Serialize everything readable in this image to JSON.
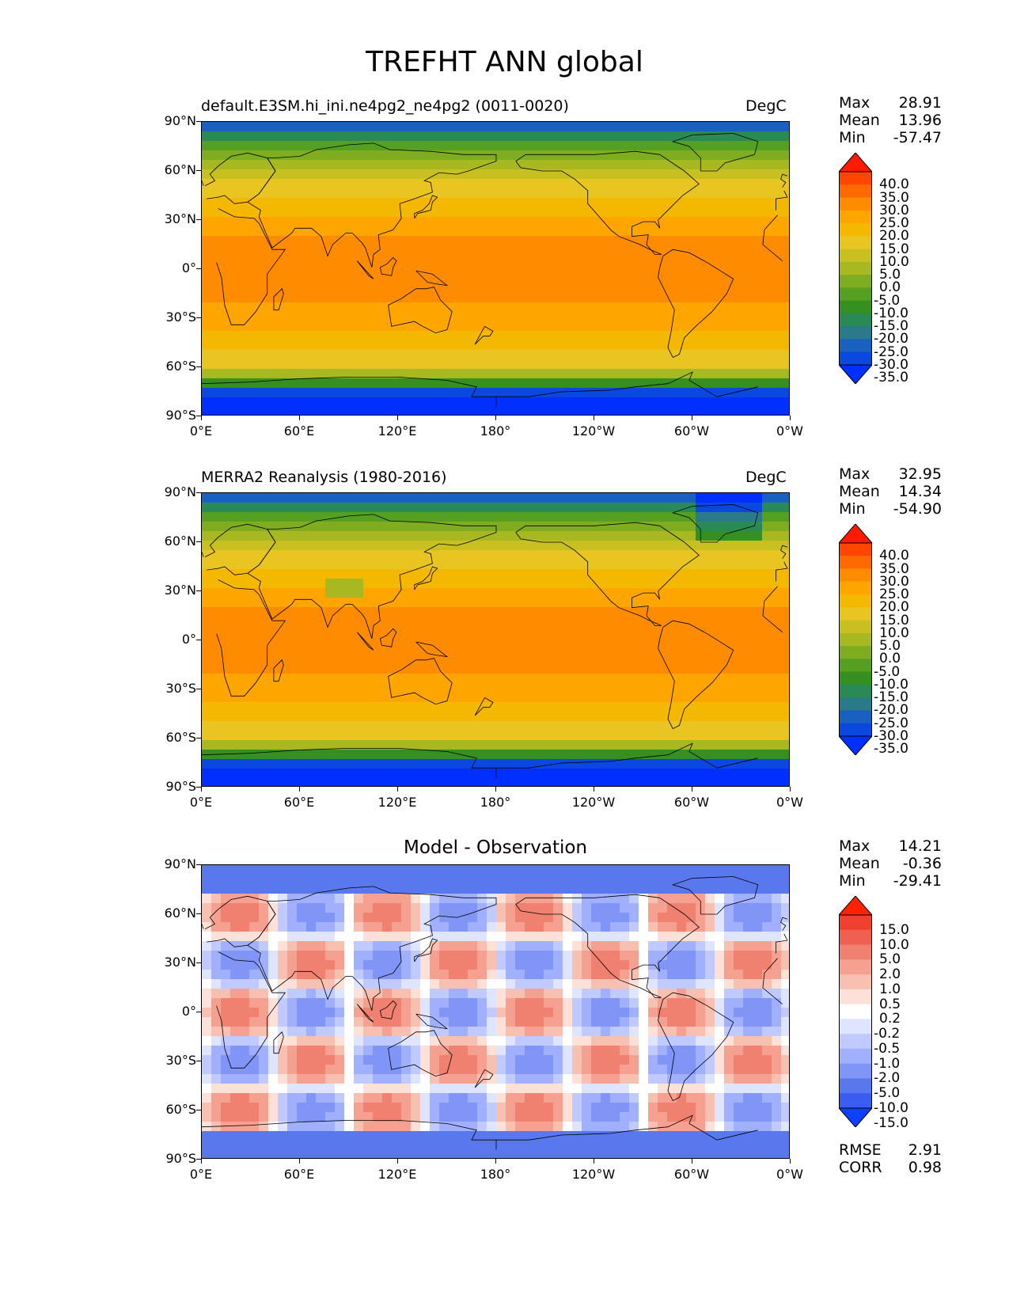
{
  "figure": {
    "title": "TREFHT ANN global"
  },
  "axes": {
    "lat_labels": [
      "90°N",
      "60°N",
      "30°N",
      "0°",
      "30°S",
      "60°S",
      "90°S"
    ],
    "lon_labels": [
      "0°E",
      "60°E",
      "120°E",
      "180°",
      "120°W",
      "60°W",
      "0°W"
    ]
  },
  "panels": [
    {
      "left_title": "default.E3SM.hi_ini.ne4pg2_ne4pg2 (0011-0020)",
      "units": "DegC",
      "center_title": "",
      "stats": [
        {
          "k": "Max",
          "v": "28.91"
        },
        {
          "k": "Mean",
          "v": "13.96"
        },
        {
          "k": "Min",
          "v": "-57.47"
        }
      ],
      "colorbar": {
        "ticks": [
          "40.0",
          "35.0",
          "30.0",
          "25.0",
          "20.0",
          "15.0",
          "10.0",
          "5.0",
          "0.0",
          "-5.0",
          "-10.0",
          "-15.0",
          "-20.0",
          "-25.0",
          "-30.0",
          "-35.0"
        ],
        "colors": [
          "#ff1a00",
          "#ff4500",
          "#ff6a00",
          "#ff8c00",
          "#ffa500",
          "#f5b800",
          "#e8c520",
          "#c8c020",
          "#a8b820",
          "#80ad20",
          "#55a020",
          "#359020",
          "#2a8a55",
          "#2a7a8a",
          "#1a60c0",
          "#0a48e0",
          "#0030ff"
        ]
      }
    },
    {
      "left_title": "MERRA2 Reanalysis (1980-2016)",
      "units": "DegC",
      "center_title": "",
      "stats": [
        {
          "k": "Max",
          "v": "32.95"
        },
        {
          "k": "Mean",
          "v": "14.34"
        },
        {
          "k": "Min",
          "v": "-54.90"
        }
      ],
      "colorbar": {
        "ticks": [
          "40.0",
          "35.0",
          "30.0",
          "25.0",
          "20.0",
          "15.0",
          "10.0",
          "5.0",
          "0.0",
          "-5.0",
          "-10.0",
          "-15.0",
          "-20.0",
          "-25.0",
          "-30.0",
          "-35.0"
        ],
        "colors": [
          "#ff1a00",
          "#ff4500",
          "#ff6a00",
          "#ff8c00",
          "#ffa500",
          "#f5b800",
          "#e8c520",
          "#c8c020",
          "#a8b820",
          "#80ad20",
          "#55a020",
          "#359020",
          "#2a8a55",
          "#2a7a8a",
          "#1a60c0",
          "#0a48e0",
          "#0030ff"
        ]
      }
    },
    {
      "left_title": "",
      "units": "",
      "center_title": "Model - Observation",
      "stats": [
        {
          "k": "Max",
          "v": "14.21"
        },
        {
          "k": "Mean",
          "v": "-0.36"
        },
        {
          "k": "Min",
          "v": "-29.41"
        }
      ],
      "extra_stats": [
        {
          "k": "RMSE",
          "v": "2.91"
        },
        {
          "k": "CORR",
          "v": "0.98"
        }
      ],
      "colorbar": {
        "ticks": [
          "15.0",
          "10.0",
          "5.0",
          "2.0",
          "1.0",
          "0.5",
          "0.2",
          "-0.2",
          "-0.5",
          "-1.0",
          "-2.0",
          "-5.0",
          "-10.0",
          "-15.0"
        ],
        "colors": [
          "#ff2200",
          "#f04030",
          "#f06050",
          "#f08070",
          "#f5a090",
          "#f8c0b0",
          "#fde0d8",
          "#ffffff",
          "#dfe4ff",
          "#c0caff",
          "#a0b0ff",
          "#8095f5",
          "#5a78ee",
          "#3a5cf0",
          "#1040ff"
        ]
      }
    }
  ],
  "chart_data": {
    "type": "heatmap",
    "title": "TREFHT ANN global",
    "xlabel": "",
    "ylabel": "",
    "x_ticks": [
      "0°E",
      "60°E",
      "120°E",
      "180°",
      "120°W",
      "60°W",
      "0°W"
    ],
    "y_ticks": [
      "90°N",
      "60°N",
      "30°N",
      "0°",
      "30°S",
      "60°S",
      "90°S"
    ],
    "xlim": [
      0,
      360
    ],
    "ylim": [
      -90,
      90
    ],
    "units": "DegC",
    "panels": [
      {
        "name": "default.E3SM.hi_ini.ne4pg2_ne4pg2 (0011-0020)",
        "max": 28.91,
        "mean": 13.96,
        "min": -57.47,
        "levels": [
          -35,
          -30,
          -25,
          -20,
          -15,
          -10,
          -5,
          0,
          5,
          10,
          15,
          20,
          25,
          30,
          35,
          40
        ]
      },
      {
        "name": "MERRA2 Reanalysis (1980-2016)",
        "max": 32.95,
        "mean": 14.34,
        "min": -54.9,
        "levels": [
          -35,
          -30,
          -25,
          -20,
          -15,
          -10,
          -5,
          0,
          5,
          10,
          15,
          20,
          25,
          30,
          35,
          40
        ]
      },
      {
        "name": "Model - Observation",
        "max": 14.21,
        "mean": -0.36,
        "min": -29.41,
        "rmse": 2.91,
        "corr": 0.98,
        "levels": [
          -15,
          -10,
          -5,
          -2,
          -1,
          -0.5,
          -0.2,
          0.2,
          0.5,
          1,
          2,
          5,
          10,
          15
        ]
      }
    ]
  }
}
